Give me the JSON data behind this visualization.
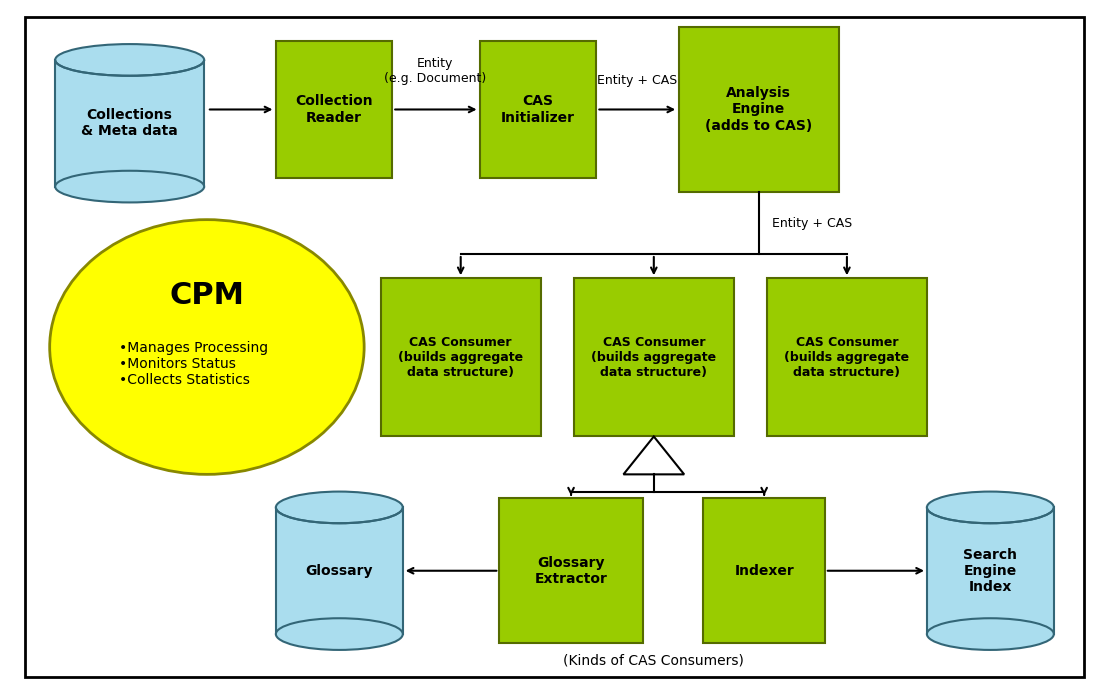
{
  "fig_width": 11.09,
  "fig_height": 6.94,
  "background_color": "#ffffff",
  "border_color": "#000000",
  "green_box_color": "#99cc00",
  "green_box_border": "#556b00",
  "cyan_cyl_color": "#aaddee",
  "cyan_cyl_border": "#336677",
  "yellow_ellipse_color": "#ffff00",
  "yellow_ellipse_border": "#888800",
  "cpm_label": "CPM",
  "cpm_bullets": "•Manages Processing\n•Monitors Status\n•Collects Statistics",
  "annotation_bottom": "(Kinds of CAS Consumers)",
  "label_entity_doc": "Entity\n(e.g. Document)",
  "label_entity_cas": "Entity + CAS"
}
